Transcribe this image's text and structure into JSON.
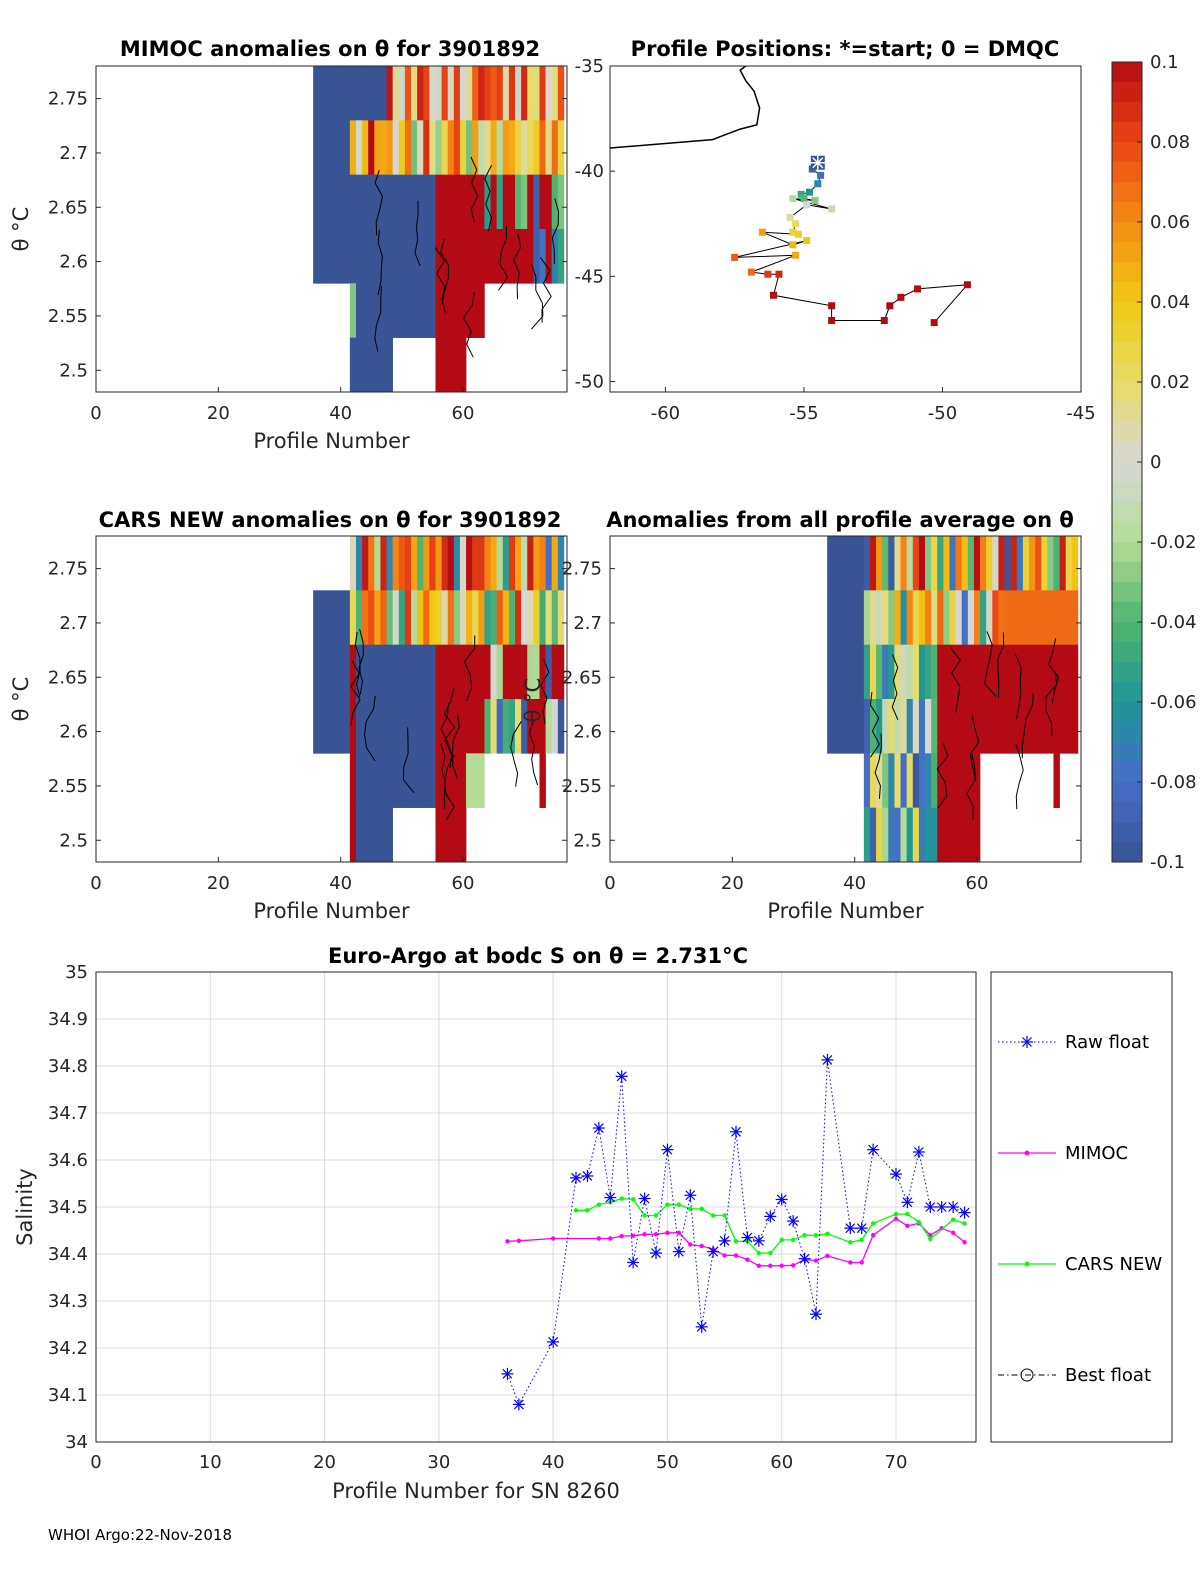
{
  "footer": "WHOI Argo:22-Nov-2018",
  "chart_data": [
    {
      "id": "mimoc",
      "type": "heatmap",
      "title": "MIMOC anomalies on θ  for 3901892",
      "xlabel": "Profile Number",
      "ylabel": "θ °C",
      "xlim": [
        0,
        77
      ],
      "ylim": [
        2.48,
        2.78
      ],
      "xticks": [
        "0",
        "20",
        "40",
        "60"
      ],
      "yticks": [
        "2.5",
        "2.55",
        "2.6",
        "2.65",
        "2.7",
        "2.75"
      ],
      "value_range": [
        -0.1,
        0.1
      ]
    },
    {
      "id": "positions",
      "type": "scatter",
      "title": "Profile Positions: *=start; 0 = DMQC",
      "xlim": [
        -62,
        -45
      ],
      "ylim": [
        -50.5,
        -35
      ],
      "xticks": [
        "-60",
        "-55",
        "-50",
        "-45"
      ],
      "yticks": [
        "-35",
        "-40",
        "-45",
        "-50"
      ],
      "points": [
        {
          "lon": -54.5,
          "lat": -39.6,
          "v": -0.1
        },
        {
          "lon": -54.7,
          "lat": -39.9,
          "v": -0.09
        },
        {
          "lon": -54.4,
          "lat": -40.2,
          "v": -0.08
        },
        {
          "lon": -54.5,
          "lat": -40.6,
          "v": -0.07
        },
        {
          "lon": -54.8,
          "lat": -41.0,
          "v": -0.06
        },
        {
          "lon": -55.1,
          "lat": -41.1,
          "v": -0.05
        },
        {
          "lon": -55.0,
          "lat": -41.3,
          "v": -0.04
        },
        {
          "lon": -54.6,
          "lat": -41.4,
          "v": -0.03
        },
        {
          "lon": -55.4,
          "lat": -41.3,
          "v": -0.02
        },
        {
          "lon": -54.0,
          "lat": -41.8,
          "v": -0.01
        },
        {
          "lon": -54.9,
          "lat": -41.6,
          "v": 0.0
        },
        {
          "lon": -55.5,
          "lat": -42.2,
          "v": 0.01
        },
        {
          "lon": -55.3,
          "lat": -42.5,
          "v": 0.02
        },
        {
          "lon": -55.4,
          "lat": -42.9,
          "v": 0.03
        },
        {
          "lon": -55.2,
          "lat": -43.0,
          "v": 0.035
        },
        {
          "lon": -56.5,
          "lat": -42.9,
          "v": 0.055
        },
        {
          "lon": -55.4,
          "lat": -43.5,
          "v": 0.045
        },
        {
          "lon": -54.9,
          "lat": -43.3,
          "v": 0.04
        },
        {
          "lon": -57.5,
          "lat": -44.1,
          "v": 0.075
        },
        {
          "lon": -55.3,
          "lat": -44.0,
          "v": 0.05
        },
        {
          "lon": -56.9,
          "lat": -44.8,
          "v": 0.07
        },
        {
          "lon": -56.3,
          "lat": -44.9,
          "v": 0.085
        },
        {
          "lon": -55.9,
          "lat": -44.9,
          "v": 0.09
        },
        {
          "lon": -56.1,
          "lat": -45.9,
          "v": 0.1
        },
        {
          "lon": -54.0,
          "lat": -46.4,
          "v": 0.1
        },
        {
          "lon": -54.0,
          "lat": -47.1,
          "v": 0.1
        },
        {
          "lon": -52.1,
          "lat": -47.1,
          "v": 0.1
        },
        {
          "lon": -51.9,
          "lat": -46.4,
          "v": 0.1
        },
        {
          "lon": -51.5,
          "lat": -46.0,
          "v": 0.1
        },
        {
          "lon": -50.9,
          "lat": -45.6,
          "v": 0.1
        },
        {
          "lon": -49.1,
          "lat": -45.4,
          "v": 0.1
        },
        {
          "lon": -50.3,
          "lat": -47.2,
          "v": 0.1
        }
      ],
      "coast": [
        [
          -62,
          -38.9
        ],
        [
          -58.3,
          -38.5
        ],
        [
          -57.3,
          -38.0
        ],
        [
          -56.7,
          -37.8
        ],
        [
          -56.6,
          -37.0
        ],
        [
          -56.8,
          -36.2
        ],
        [
          -57.1,
          -35.7
        ],
        [
          -57.3,
          -35.2
        ],
        [
          -57.1,
          -35.0
        ]
      ]
    },
    {
      "id": "cars",
      "type": "heatmap",
      "title": "CARS NEW anomalies on θ for 3901892",
      "xlabel": "Profile Number",
      "ylabel": "θ °C",
      "xlim": [
        0,
        77
      ],
      "ylim": [
        2.48,
        2.78
      ],
      "xticks": [
        "0",
        "20",
        "40",
        "60"
      ],
      "yticks": [
        "2.5",
        "2.55",
        "2.6",
        "2.65",
        "2.7",
        "2.75"
      ],
      "value_range": [
        -0.1,
        0.1
      ]
    },
    {
      "id": "allavg",
      "type": "heatmap",
      "title": "Anomalies from all profile average on θ",
      "xlabel": "Profile Number",
      "ylabel": "θ °C",
      "xlim": [
        0,
        77
      ],
      "ylim": [
        2.48,
        2.78
      ],
      "xticks": [
        "0",
        "20",
        "40",
        "60"
      ],
      "yticks": [
        "2.5",
        "2.55",
        "2.6",
        "2.65",
        "2.7",
        "2.75"
      ],
      "value_range": [
        -0.1,
        0.1
      ]
    },
    {
      "id": "colorbar",
      "type": "colorbar",
      "ticks": [
        "0.1",
        "0.08",
        "0.06",
        "0.04",
        "0.02",
        "0",
        "-0.02",
        "-0.04",
        "-0.06",
        "-0.08",
        "-0.1"
      ],
      "range": [
        -0.1,
        0.1
      ]
    },
    {
      "id": "salinity",
      "type": "line",
      "title": "Euro-Argo at bodc S on θ = 2.731°C",
      "xlabel": "Profile Number for SN 8260",
      "ylabel": "Salinity",
      "xlim": [
        0,
        77
      ],
      "ylim": [
        34,
        35
      ],
      "xticks": [
        "0",
        "10",
        "20",
        "30",
        "40",
        "50",
        "60",
        "70"
      ],
      "yticks": [
        "34",
        "34.1",
        "34.2",
        "34.3",
        "34.4",
        "34.5",
        "34.6",
        "34.7",
        "34.8",
        "34.9",
        "35"
      ],
      "series": [
        {
          "name": "Raw float",
          "color": "#0000ff",
          "x": [
            36,
            37,
            40,
            42,
            43,
            44,
            45,
            46,
            47,
            48,
            49,
            50,
            51,
            52,
            53,
            54,
            55,
            56,
            57,
            58,
            59,
            60,
            61,
            62,
            63,
            64,
            66,
            67,
            68,
            70,
            71,
            72,
            73,
            74,
            75,
            76
          ],
          "y": [
            34.145,
            34.08,
            34.213,
            34.562,
            34.566,
            34.668,
            34.52,
            34.778,
            34.382,
            34.518,
            34.402,
            34.622,
            34.405,
            34.525,
            34.245,
            34.405,
            34.428,
            34.66,
            34.435,
            34.428,
            34.48,
            34.516,
            34.47,
            34.39,
            34.272,
            34.813,
            34.455,
            34.455,
            34.622,
            34.57,
            34.51,
            34.617,
            34.5,
            34.5,
            34.5,
            34.488
          ]
        },
        {
          "name": "MIMOC",
          "color": "#ff00ff",
          "x": [
            36,
            37,
            40,
            44,
            45,
            46,
            47,
            48,
            49,
            50,
            51,
            52,
            53,
            54,
            55,
            56,
            57,
            58,
            59,
            60,
            61,
            62,
            63,
            64,
            66,
            67,
            68,
            70,
            71,
            72,
            73,
            74,
            75,
            76
          ],
          "y": [
            34.427,
            34.428,
            34.433,
            34.433,
            34.433,
            34.438,
            34.439,
            34.442,
            34.442,
            34.445,
            34.445,
            34.42,
            34.417,
            34.41,
            34.397,
            34.397,
            34.388,
            34.375,
            34.375,
            34.375,
            34.376,
            34.388,
            34.386,
            34.396,
            34.382,
            34.382,
            34.44,
            34.475,
            34.46,
            34.465,
            34.44,
            34.455,
            34.445,
            34.425
          ]
        },
        {
          "name": "CARS NEW",
          "color": "#00ff00",
          "x": [
            42,
            43,
            44,
            45,
            46,
            47,
            48,
            49,
            50,
            51,
            52,
            53,
            54,
            55,
            56,
            57,
            58,
            59,
            60,
            61,
            62,
            63,
            64,
            66,
            67,
            68,
            70,
            71,
            72,
            73,
            75,
            76
          ],
          "y": [
            34.493,
            34.493,
            34.505,
            34.51,
            34.518,
            34.516,
            34.482,
            34.482,
            34.505,
            34.505,
            34.496,
            34.496,
            34.482,
            34.482,
            34.427,
            34.427,
            34.402,
            34.402,
            34.43,
            34.43,
            34.44,
            34.44,
            34.443,
            34.425,
            34.43,
            34.465,
            34.485,
            34.485,
            34.468,
            34.432,
            34.473,
            34.465
          ]
        },
        {
          "name": "Best float",
          "color": "#000000",
          "x": [],
          "y": []
        }
      ]
    }
  ]
}
